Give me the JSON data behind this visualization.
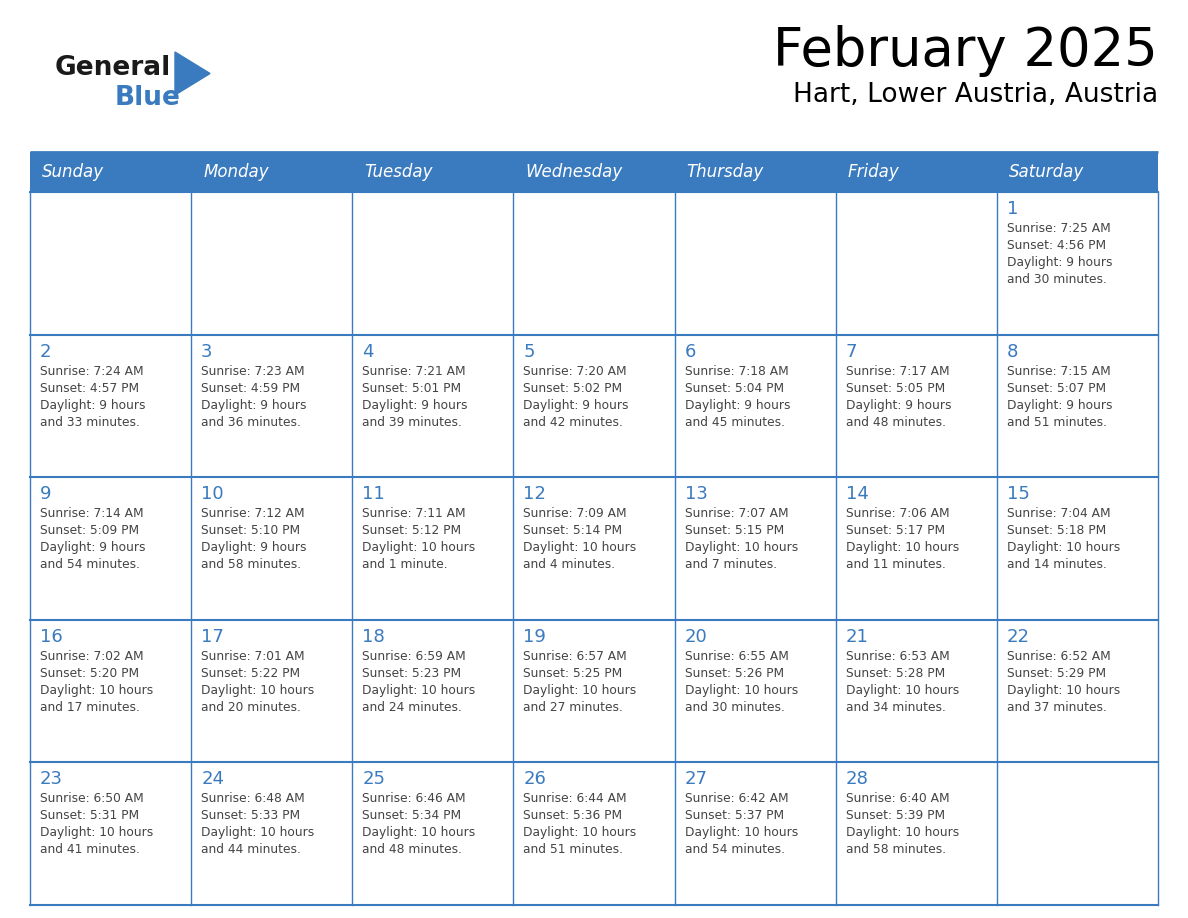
{
  "title": "February 2025",
  "subtitle": "Hart, Lower Austria, Austria",
  "header_bg": "#3a7abf",
  "header_text": "#ffffff",
  "day_number_color": "#3a7abf",
  "cell_text_color": "#444444",
  "border_color": "#3a7abf",
  "separator_color": "#3a7abf",
  "days_of_week": [
    "Sunday",
    "Monday",
    "Tuesday",
    "Wednesday",
    "Thursday",
    "Friday",
    "Saturday"
  ],
  "logo_general_color": "#1a1a1a",
  "logo_blue_color": "#3a7abf",
  "calendar_data": [
    [
      null,
      null,
      null,
      null,
      null,
      null,
      {
        "day": "1",
        "sunrise": "7:25 AM",
        "sunset": "4:56 PM",
        "daylight": "9 hours\nand 30 minutes."
      }
    ],
    [
      {
        "day": "2",
        "sunrise": "7:24 AM",
        "sunset": "4:57 PM",
        "daylight": "9 hours\nand 33 minutes."
      },
      {
        "day": "3",
        "sunrise": "7:23 AM",
        "sunset": "4:59 PM",
        "daylight": "9 hours\nand 36 minutes."
      },
      {
        "day": "4",
        "sunrise": "7:21 AM",
        "sunset": "5:01 PM",
        "daylight": "9 hours\nand 39 minutes."
      },
      {
        "day": "5",
        "sunrise": "7:20 AM",
        "sunset": "5:02 PM",
        "daylight": "9 hours\nand 42 minutes."
      },
      {
        "day": "6",
        "sunrise": "7:18 AM",
        "sunset": "5:04 PM",
        "daylight": "9 hours\nand 45 minutes."
      },
      {
        "day": "7",
        "sunrise": "7:17 AM",
        "sunset": "5:05 PM",
        "daylight": "9 hours\nand 48 minutes."
      },
      {
        "day": "8",
        "sunrise": "7:15 AM",
        "sunset": "5:07 PM",
        "daylight": "9 hours\nand 51 minutes."
      }
    ],
    [
      {
        "day": "9",
        "sunrise": "7:14 AM",
        "sunset": "5:09 PM",
        "daylight": "9 hours\nand 54 minutes."
      },
      {
        "day": "10",
        "sunrise": "7:12 AM",
        "sunset": "5:10 PM",
        "daylight": "9 hours\nand 58 minutes."
      },
      {
        "day": "11",
        "sunrise": "7:11 AM",
        "sunset": "5:12 PM",
        "daylight": "10 hours\nand 1 minute."
      },
      {
        "day": "12",
        "sunrise": "7:09 AM",
        "sunset": "5:14 PM",
        "daylight": "10 hours\nand 4 minutes."
      },
      {
        "day": "13",
        "sunrise": "7:07 AM",
        "sunset": "5:15 PM",
        "daylight": "10 hours\nand 7 minutes."
      },
      {
        "day": "14",
        "sunrise": "7:06 AM",
        "sunset": "5:17 PM",
        "daylight": "10 hours\nand 11 minutes."
      },
      {
        "day": "15",
        "sunrise": "7:04 AM",
        "sunset": "5:18 PM",
        "daylight": "10 hours\nand 14 minutes."
      }
    ],
    [
      {
        "day": "16",
        "sunrise": "7:02 AM",
        "sunset": "5:20 PM",
        "daylight": "10 hours\nand 17 minutes."
      },
      {
        "day": "17",
        "sunrise": "7:01 AM",
        "sunset": "5:22 PM",
        "daylight": "10 hours\nand 20 minutes."
      },
      {
        "day": "18",
        "sunrise": "6:59 AM",
        "sunset": "5:23 PM",
        "daylight": "10 hours\nand 24 minutes."
      },
      {
        "day": "19",
        "sunrise": "6:57 AM",
        "sunset": "5:25 PM",
        "daylight": "10 hours\nand 27 minutes."
      },
      {
        "day": "20",
        "sunrise": "6:55 AM",
        "sunset": "5:26 PM",
        "daylight": "10 hours\nand 30 minutes."
      },
      {
        "day": "21",
        "sunrise": "6:53 AM",
        "sunset": "5:28 PM",
        "daylight": "10 hours\nand 34 minutes."
      },
      {
        "day": "22",
        "sunrise": "6:52 AM",
        "sunset": "5:29 PM",
        "daylight": "10 hours\nand 37 minutes."
      }
    ],
    [
      {
        "day": "23",
        "sunrise": "6:50 AM",
        "sunset": "5:31 PM",
        "daylight": "10 hours\nand 41 minutes."
      },
      {
        "day": "24",
        "sunrise": "6:48 AM",
        "sunset": "5:33 PM",
        "daylight": "10 hours\nand 44 minutes."
      },
      {
        "day": "25",
        "sunrise": "6:46 AM",
        "sunset": "5:34 PM",
        "daylight": "10 hours\nand 48 minutes."
      },
      {
        "day": "26",
        "sunrise": "6:44 AM",
        "sunset": "5:36 PM",
        "daylight": "10 hours\nand 51 minutes."
      },
      {
        "day": "27",
        "sunrise": "6:42 AM",
        "sunset": "5:37 PM",
        "daylight": "10 hours\nand 54 minutes."
      },
      {
        "day": "28",
        "sunrise": "6:40 AM",
        "sunset": "5:39 PM",
        "daylight": "10 hours\nand 58 minutes."
      },
      null
    ]
  ]
}
